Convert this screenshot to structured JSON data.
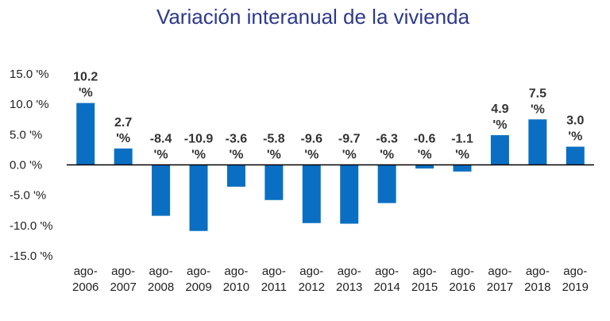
{
  "chart_data": {
    "type": "bar",
    "title": "Variación interanual de la vivienda",
    "xlabel": "",
    "ylabel": "",
    "ylim": [
      -15,
      15
    ],
    "yticks": [
      15,
      10,
      5,
      0,
      -5,
      -10,
      -15
    ],
    "ytick_labels": [
      "15.0 '%",
      "10.0 '%",
      "5.0 '%",
      "0.0 '%",
      "-5.0 '%",
      "-10.0 '%",
      "-15.0 '%"
    ],
    "categories": [
      [
        "ago-",
        "2006"
      ],
      [
        "ago-",
        "2007"
      ],
      [
        "ago-",
        "2008"
      ],
      [
        "ago-",
        "2009"
      ],
      [
        "ago-",
        "2010"
      ],
      [
        "ago-",
        "2011"
      ],
      [
        "ago-",
        "2012"
      ],
      [
        "ago-",
        "2013"
      ],
      [
        "ago-",
        "2014"
      ],
      [
        "ago-",
        "2015"
      ],
      [
        "ago-",
        "2016"
      ],
      [
        "ago-",
        "2017"
      ],
      [
        "ago-",
        "2018"
      ],
      [
        "ago-",
        "2019"
      ]
    ],
    "values": [
      10.2,
      2.7,
      -8.4,
      -10.9,
      -3.6,
      -5.8,
      -9.6,
      -9.7,
      -6.3,
      -0.6,
      -1.1,
      4.9,
      7.5,
      3.0
    ],
    "data_labels": [
      [
        "10.2",
        "'%"
      ],
      [
        "2.7",
        "'%"
      ],
      [
        "-8.4",
        "'%"
      ],
      [
        "-10.9",
        "'%"
      ],
      [
        "-3.6",
        "'%"
      ],
      [
        "-5.8",
        "'%"
      ],
      [
        "-9.6",
        "'%"
      ],
      [
        "-9.7",
        "'%"
      ],
      [
        "-6.3",
        "'%"
      ],
      [
        "-0.6",
        "'%"
      ],
      [
        "-1.1",
        "'%"
      ],
      [
        "4.9",
        "'%"
      ],
      [
        "7.5",
        "'%"
      ],
      [
        "3.0",
        "'%"
      ]
    ],
    "bar_color": "#0a6fc2",
    "axis_color": "#000000",
    "title_color": "#2e3a8c",
    "grid": false,
    "legend": "none"
  }
}
